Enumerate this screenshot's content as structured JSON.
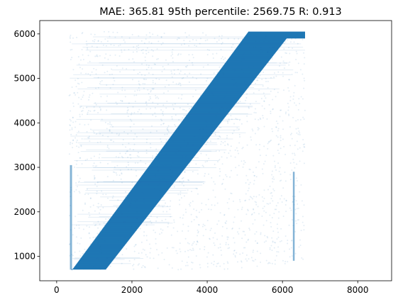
{
  "chart_data": {
    "type": "scatter",
    "title": "MAE: 365.81 95th percentile: 2569.75 R: 0.913",
    "xlabel": "",
    "ylabel": "",
    "xlim": [
      -450,
      8900
    ],
    "ylim": [
      450,
      6300
    ],
    "x_ticks": [
      0,
      2000,
      4000,
      6000,
      8000
    ],
    "y_ticks": [
      1000,
      2000,
      3000,
      4000,
      5000,
      6000
    ],
    "grid": false,
    "legend": "none",
    "series": [
      {
        "color": "#1f77b4",
        "marker_alpha": 0.04,
        "x_range": [
          330,
          6600
        ],
        "y_range": [
          700,
          6050
        ],
        "dense_band_lower_edge": [
          [
            400,
            700
          ],
          [
            1300,
            700
          ],
          [
            6250,
            6050
          ]
        ],
        "dense_band_upper_edge": [
          [
            420,
            700
          ],
          [
            5100,
            6050
          ],
          [
            6600,
            6050
          ]
        ],
        "vertical_streaks_x": [
          380,
          6300
        ]
      }
    ]
  }
}
